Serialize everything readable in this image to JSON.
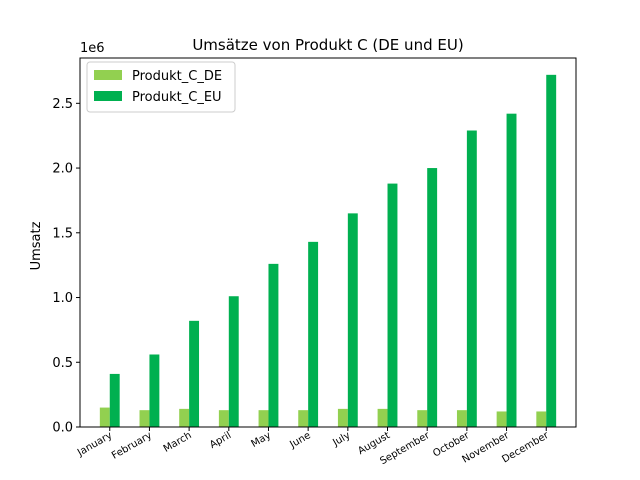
{
  "chart_data": {
    "type": "bar",
    "title": "Umsätze von Produkt C (DE und EU)",
    "xlabel": "",
    "ylabel": "Umsatz",
    "y_multiplier_label": "1e6",
    "y_multiplier": 1000000,
    "ylim": [
      0,
      2.85
    ],
    "yticks": [
      0.0,
      0.5,
      1.0,
      1.5,
      2.0,
      2.5
    ],
    "ytick_labels": [
      "0.0",
      "0.5",
      "1.0",
      "1.5",
      "2.0",
      "2.5"
    ],
    "categories": [
      "January",
      "February",
      "March",
      "April",
      "May",
      "June",
      "July",
      "August",
      "September",
      "October",
      "November",
      "December"
    ],
    "series": [
      {
        "name": "Produkt_C_DE",
        "color": "#92d050",
        "values": [
          0.15,
          0.13,
          0.14,
          0.13,
          0.13,
          0.13,
          0.14,
          0.14,
          0.13,
          0.13,
          0.12,
          0.12
        ]
      },
      {
        "name": "Produkt_C_EU",
        "color": "#00b050",
        "values": [
          0.41,
          0.56,
          0.82,
          1.01,
          1.26,
          1.43,
          1.65,
          1.88,
          2.0,
          2.29,
          2.42,
          2.72
        ]
      }
    ],
    "legend_position": "top-left",
    "grid": false
  }
}
